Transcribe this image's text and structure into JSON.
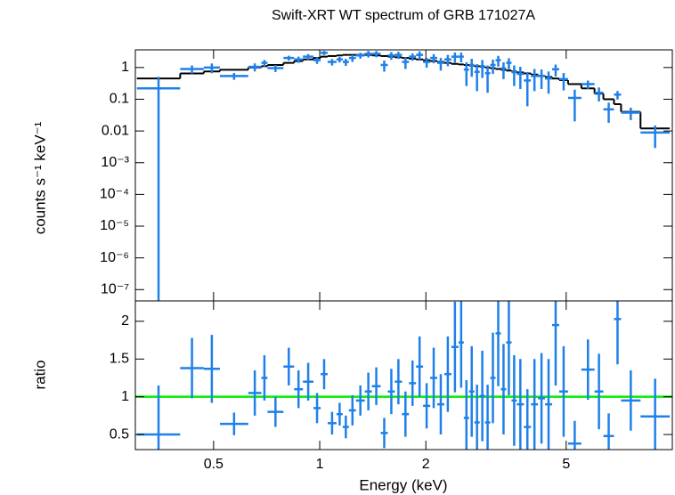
{
  "chart_data": [
    {
      "type": "errorbar",
      "title": "Swift-XRT WT spectrum of GRB 171027A",
      "ylabel": "counts s⁻¹ keV⁻¹",
      "log_x": true,
      "log_y": true,
      "xlim": [
        0.3,
        10
      ],
      "ylim": [
        4.4e-08,
        3.6
      ],
      "yticks": [
        1,
        0.1,
        0.01,
        {
          "value": 0.001,
          "label": "10⁻³"
        },
        {
          "value": 0.0001,
          "label": "10⁻⁴"
        },
        {
          "value": 1e-05,
          "label": "10⁻⁵"
        },
        {
          "value": 1e-06,
          "label": "10⁻⁶"
        },
        {
          "value": 1e-07,
          "label": "10⁻⁷"
        }
      ],
      "bins": [
        0.303,
        0.402,
        0.469,
        0.521,
        0.627,
        0.683,
        0.711,
        0.789,
        0.846,
        0.896,
        0.96,
        1.006,
        1.053,
        1.116,
        1.162,
        1.21,
        1.267,
        1.342,
        1.406,
        1.489,
        1.56,
        1.633,
        1.711,
        1.791,
        1.876,
        1.964,
        2.057,
        2.154,
        2.256,
        2.362,
        2.475,
        2.562,
        2.652,
        2.745,
        2.842,
        2.942,
        3.045,
        3.153,
        3.264,
        3.379,
        3.499,
        3.622,
        3.793,
        3.972,
        4.159,
        4.355,
        4.561,
        4.777,
        5.062,
        5.521,
        6.017,
        6.375,
        6.833,
        7.155,
        8.124,
        9.83
      ],
      "data": {
        "color": "#1f80e8",
        "values": [
          0.22,
          0.9,
          1.0,
          0.54,
          1.05,
          1.4,
          0.96,
          2.0,
          1.8,
          2.2,
          1.7,
          2.9,
          1.5,
          1.8,
          1.5,
          2.0,
          2.4,
          2.7,
          2.7,
          1.2,
          2.4,
          2.5,
          1.5,
          2.2,
          2.5,
          1.5,
          2.0,
          1.4,
          1.8,
          2.2,
          2.2,
          0.86,
          1.2,
          0.73,
          1.1,
          0.66,
          1.2,
          1.7,
          0.94,
          1.4,
          0.71,
          0.63,
          0.39,
          0.54,
          0.54,
          0.45,
          0.88,
          0.43,
          0.11,
          0.3,
          0.16,
          0.048,
          0.14,
          0.038,
          0.0089
        ],
        "errors": [
          0.29,
          0.26,
          0.34,
          0.13,
          0.3,
          0.33,
          0.24,
          0.35,
          0.4,
          0.45,
          0.4,
          0.44,
          0.35,
          0.36,
          0.38,
          0.5,
          0.5,
          0.63,
          0.6,
          0.46,
          0.66,
          0.63,
          0.6,
          0.57,
          0.72,
          0.51,
          0.64,
          0.6,
          0.7,
          0.78,
          0.75,
          0.6,
          0.69,
          0.55,
          0.63,
          0.5,
          0.57,
          0.63,
          0.51,
          0.56,
          0.45,
          0.42,
          0.33,
          0.36,
          0.33,
          0.3,
          0.36,
          0.24,
          0.09,
          0.088,
          0.075,
          0.03,
          0.042,
          0.016,
          0.006
        ]
      },
      "model": {
        "color": "#000000",
        "values": [
          0.45,
          0.65,
          0.75,
          0.85,
          1.0,
          1.1,
          1.2,
          1.4,
          1.6,
          1.8,
          2.0,
          2.2,
          2.3,
          2.4,
          2.5,
          2.5,
          2.5,
          2.5,
          2.4,
          2.3,
          2.2,
          2.1,
          2.0,
          1.9,
          1.8,
          1.7,
          1.6,
          1.5,
          1.4,
          1.3,
          1.25,
          1.2,
          1.15,
          1.1,
          1.05,
          1.0,
          0.95,
          0.9,
          0.85,
          0.8,
          0.75,
          0.7,
          0.65,
          0.6,
          0.55,
          0.5,
          0.45,
          0.4,
          0.3,
          0.22,
          0.15,
          0.1,
          0.07,
          0.04,
          0.012
        ]
      }
    },
    {
      "type": "errorbar",
      "xlabel": "Energy (keV)",
      "ylabel": "ratio",
      "log_x": true,
      "log_y": false,
      "xlim": [
        0.3,
        10
      ],
      "xticks": [
        0.5,
        1,
        2,
        5
      ],
      "ylim": [
        0.3,
        2.27
      ],
      "yticks": [
        0.5,
        1,
        1.5,
        2
      ],
      "bins": [
        0.303,
        0.402,
        0.469,
        0.521,
        0.627,
        0.683,
        0.711,
        0.789,
        0.846,
        0.896,
        0.96,
        1.006,
        1.053,
        1.116,
        1.162,
        1.21,
        1.267,
        1.342,
        1.406,
        1.489,
        1.56,
        1.633,
        1.711,
        1.791,
        1.876,
        1.964,
        2.057,
        2.154,
        2.256,
        2.362,
        2.475,
        2.562,
        2.652,
        2.745,
        2.842,
        2.942,
        3.045,
        3.153,
        3.264,
        3.379,
        3.499,
        3.622,
        3.793,
        3.972,
        4.159,
        4.355,
        4.561,
        4.777,
        5.062,
        5.521,
        6.017,
        6.375,
        6.833,
        7.155,
        8.124,
        9.83
      ],
      "data": {
        "color": "#1f80e8",
        "values": [
          0.5,
          1.38,
          1.37,
          0.64,
          1.05,
          1.25,
          0.8,
          1.4,
          1.1,
          1.2,
          0.85,
          1.3,
          0.65,
          0.77,
          0.6,
          0.82,
          0.95,
          1.07,
          1.14,
          0.52,
          1.07,
          1.2,
          0.77,
          1.18,
          1.4,
          0.88,
          1.25,
          0.9,
          1.3,
          1.66,
          1.72,
          0.72,
          1.07,
          0.66,
          1.01,
          0.66,
          1.25,
          1.84,
          1.1,
          1.72,
          0.95,
          0.9,
          0.6,
          0.9,
          0.98,
          0.9,
          1.95,
          1.07,
          0.38,
          1.36,
          1.07,
          0.48,
          2.03,
          0.95,
          0.74
        ],
        "errors": [
          0.65,
          0.4,
          0.45,
          0.15,
          0.3,
          0.3,
          0.2,
          0.25,
          0.25,
          0.25,
          0.2,
          0.2,
          0.15,
          0.15,
          0.15,
          0.2,
          0.2,
          0.25,
          0.25,
          0.2,
          0.3,
          0.3,
          0.3,
          0.3,
          0.4,
          0.3,
          0.4,
          0.4,
          0.5,
          0.6,
          0.6,
          0.5,
          0.6,
          0.5,
          0.6,
          0.5,
          0.6,
          0.7,
          0.6,
          0.7,
          0.6,
          0.6,
          0.5,
          0.6,
          0.6,
          0.6,
          0.8,
          0.6,
          0.3,
          0.4,
          0.5,
          0.3,
          0.6,
          0.4,
          0.5
        ]
      },
      "reference_line": {
        "value": 1,
        "color": "#00ee00"
      }
    }
  ]
}
